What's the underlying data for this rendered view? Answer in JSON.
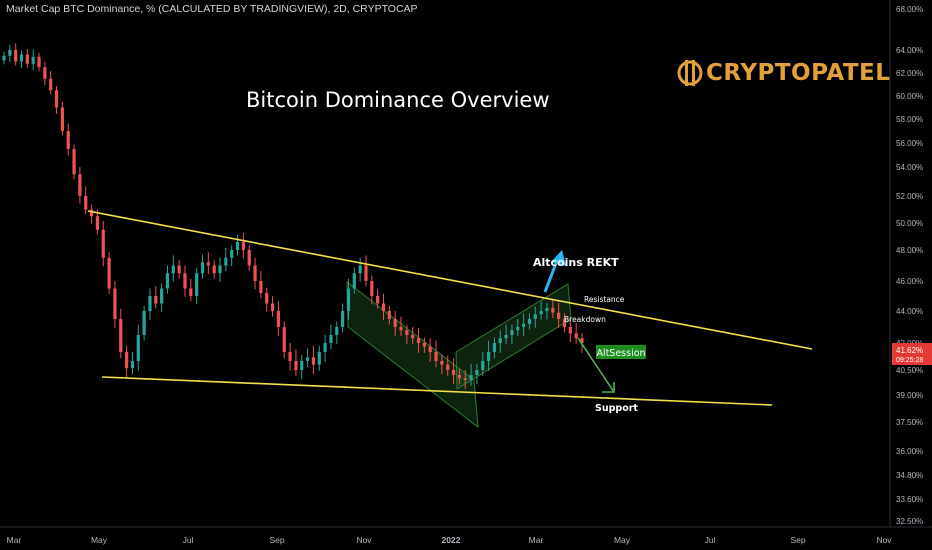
{
  "header": {
    "text": "Market Cap BTC Dominance, % (CALCULATED BY TRADINGVIEW), 2D, CRYPTOCAP"
  },
  "logo": {
    "text": "CRYPTOPATEL",
    "color": "#e2a03a"
  },
  "chart_data": {
    "type": "candlestick",
    "title": "Bitcoin Dominance Overview",
    "x_tick_labels": [
      "Mar",
      "May",
      "Jul",
      "Sep",
      "Nov",
      "2022",
      "Mar",
      "May",
      "Jul",
      "Sep",
      "Nov"
    ],
    "y_tick_labels": [
      "68.00%",
      "64.00%",
      "62.00%",
      "60.00%",
      "58.00%",
      "56.00%",
      "54.00%",
      "52.00%",
      "50.00%",
      "48.00%",
      "46.00%",
      "44.00%",
      "42.00%",
      "40.50%",
      "39.00%",
      "37.50%",
      "36.00%",
      "34.80%",
      "33.60%",
      "32.50%"
    ],
    "ylim": [
      32.5,
      68.0
    ],
    "series": [
      {
        "values": [
          63.5,
          64.0,
          63.0,
          63.6,
          62.8,
          63.4,
          62.5,
          61.5,
          60.5,
          59.0,
          57.0,
          55.5,
          53.5,
          52.0,
          51.0,
          50.5,
          49.5,
          47.5,
          45.5,
          43.5,
          41.5,
          40.6,
          41.0,
          42.5,
          44.0,
          45.0,
          44.5,
          45.5,
          46.5,
          47.0,
          46.5,
          45.5,
          45.0,
          46.5,
          47.2,
          47.0,
          46.5,
          47.0,
          47.5,
          48.0,
          48.6,
          48.0,
          47.0,
          46.0,
          45.2,
          44.5,
          44.0,
          43.0,
          41.5,
          41.0,
          40.5,
          41.0,
          41.2,
          40.8,
          41.5,
          42.0,
          42.5,
          43.0,
          44.0,
          45.5,
          46.5,
          47.0,
          46.0,
          45.0,
          44.5,
          44.0,
          43.5,
          43.0,
          42.8,
          42.5,
          42.3,
          42.0,
          41.8,
          41.5,
          41.0,
          40.8,
          40.5,
          40.2,
          40.0,
          39.9,
          40.2,
          40.5,
          41.0,
          41.5,
          42.0,
          42.3,
          42.5,
          42.8,
          43.0,
          43.2,
          43.5,
          43.8,
          44.0,
          44.2,
          43.9,
          43.5,
          43.0,
          42.6,
          42.3,
          42.0
        ]
      }
    ],
    "annotations": {
      "alts_label": "Altcoins REKT",
      "resistance_label": "Resistance",
      "breakdown_label": "Breakdown",
      "support_label": "Support",
      "altsession_label": "AltSession"
    },
    "price_badge": {
      "value": "41.62%",
      "timer": "09:25:28"
    }
  },
  "colors": {
    "background": "#000000",
    "bull": "#26a69a",
    "bear": "#ef5350",
    "trendline": "#f5e04a",
    "channel": "#2e7d32",
    "arrow_up": "#29b6f6",
    "arrow_down": "#4caf50",
    "altsession_bg": "#1e8e1e",
    "badge": "#e53935"
  }
}
